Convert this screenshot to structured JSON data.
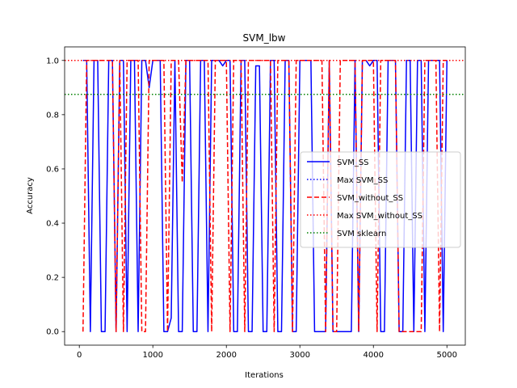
{
  "chart_data": {
    "type": "line",
    "title": "SVM_lbw",
    "xlabel": "Iterations",
    "ylabel": "Accuracy",
    "xlim": [
      -200,
      5250
    ],
    "ylim": [
      -0.05,
      1.05
    ],
    "xticks": [
      0,
      1000,
      2000,
      3000,
      4000,
      5000
    ],
    "yticks": [
      0.0,
      0.2,
      0.4,
      0.6,
      0.8,
      1.0
    ],
    "legend_position": "center-right",
    "grid": false,
    "series": [
      {
        "name": "SVM_SS",
        "color": "#0000ff",
        "style": "solid",
        "x": [
          50,
          100,
          150,
          200,
          250,
          300,
          350,
          400,
          450,
          500,
          550,
          600,
          650,
          700,
          750,
          800,
          850,
          900,
          950,
          1000,
          1050,
          1100,
          1150,
          1200,
          1250,
          1300,
          1350,
          1400,
          1450,
          1500,
          1550,
          1600,
          1650,
          1700,
          1750,
          1800,
          1850,
          1900,
          1950,
          2000,
          2050,
          2100,
          2150,
          2200,
          2250,
          2300,
          2350,
          2400,
          2450,
          2500,
          2550,
          2600,
          2650,
          2700,
          2750,
          2800,
          2850,
          2900,
          2950,
          3000,
          3050,
          3100,
          3150,
          3200,
          3250,
          3300,
          3350,
          3400,
          3450,
          3500,
          3550,
          3600,
          3650,
          3700,
          3750,
          3800,
          3850,
          3900,
          3950,
          4000,
          4050,
          4100,
          4150,
          4200,
          4250,
          4300,
          4350,
          4400,
          4450,
          4500,
          4550,
          4600,
          4650,
          4700,
          4750,
          4800,
          4850,
          4900,
          4950,
          5000
        ],
        "y": [
          1.0,
          1.0,
          0.0,
          1.0,
          1.0,
          0.0,
          0.0,
          1.0,
          1.0,
          0.0,
          1.0,
          1.0,
          0.0,
          1.0,
          1.0,
          0.0,
          1.0,
          1.0,
          0.9,
          1.0,
          1.0,
          1.0,
          0.0,
          0.0,
          0.05,
          1.0,
          0.0,
          0.0,
          1.0,
          1.0,
          0.0,
          0.0,
          1.0,
          1.0,
          0.0,
          1.0,
          1.0,
          1.0,
          0.98,
          1.0,
          1.0,
          0.0,
          0.0,
          1.0,
          1.0,
          0.0,
          0.0,
          0.98,
          0.98,
          0.0,
          0.0,
          1.0,
          1.0,
          0.0,
          0.0,
          1.0,
          1.0,
          0.0,
          0.0,
          1.0,
          1.0,
          1.0,
          1.0,
          0.0,
          0.0,
          0.0,
          0.0,
          1.0,
          0.0,
          0.0,
          0.0,
          0.0,
          0.0,
          0.0,
          1.0,
          0.0,
          1.0,
          1.0,
          0.98,
          1.0,
          1.0,
          0.0,
          0.0,
          1.0,
          1.0,
          1.0,
          0.0,
          0.0,
          1.0,
          1.0,
          0.0,
          1.0,
          1.0,
          0.0,
          1.0,
          1.0,
          1.0,
          1.0,
          0.0,
          1.0
        ]
      },
      {
        "name": "Max SVM_SS",
        "color": "#0000ff",
        "style": "dotted",
        "x": [
          -200,
          5250
        ],
        "y": [
          1.0,
          1.0
        ]
      },
      {
        "name": "SVM_without_SS",
        "color": "#ff0000",
        "style": "dashed",
        "x": [
          50,
          100,
          150,
          200,
          250,
          300,
          350,
          400,
          450,
          500,
          550,
          600,
          650,
          700,
          750,
          800,
          850,
          900,
          950,
          1000,
          1050,
          1100,
          1150,
          1200,
          1250,
          1300,
          1350,
          1400,
          1450,
          1500,
          1550,
          1600,
          1650,
          1700,
          1750,
          1800,
          1850,
          1900,
          1950,
          2000,
          2050,
          2100,
          2150,
          2200,
          2250,
          2300,
          2350,
          2400,
          2450,
          2500,
          2550,
          2600,
          2650,
          2700,
          2750,
          2800,
          2850,
          2900,
          2950,
          3000,
          3050,
          3100,
          3150,
          3200,
          3250,
          3300,
          3350,
          3400,
          3450,
          3500,
          3550,
          3600,
          3650,
          3700,
          3750,
          3800,
          3850,
          3900,
          3950,
          4000,
          4050,
          4100,
          4150,
          4200,
          4250,
          4300,
          4350,
          4400,
          4450,
          4500,
          4550,
          4600,
          4650,
          4700,
          4750,
          4800,
          4850,
          4900,
          4950,
          5000
        ],
        "y": [
          0.0,
          1.0,
          1.0,
          1.0,
          1.0,
          1.0,
          1.0,
          1.0,
          1.0,
          0.0,
          1.0,
          0.0,
          1.0,
          1.0,
          1.0,
          1.0,
          0.0,
          0.0,
          1.0,
          1.0,
          1.0,
          1.0,
          1.0,
          0.0,
          1.0,
          1.0,
          1.0,
          0.55,
          1.0,
          1.0,
          1.0,
          1.0,
          1.0,
          1.0,
          1.0,
          0.0,
          1.0,
          1.0,
          1.0,
          1.0,
          0.0,
          1.0,
          1.0,
          1.0,
          0.0,
          1.0,
          1.0,
          1.0,
          1.0,
          1.0,
          1.0,
          1.0,
          0.0,
          1.0,
          1.0,
          1.0,
          1.0,
          0.0,
          1.0,
          1.0,
          1.0,
          1.0,
          1.0,
          1.0,
          1.0,
          1.0,
          0.0,
          1.0,
          0.0,
          0.0,
          1.0,
          1.0,
          1.0,
          1.0,
          1.0,
          0.0,
          1.0,
          1.0,
          1.0,
          1.0,
          0.0,
          1.0,
          1.0,
          1.0,
          1.0,
          1.0,
          0.0,
          0.0,
          0.0,
          0.0,
          0.0,
          0.0,
          0.0,
          1.0,
          1.0,
          1.0,
          1.0,
          0.0,
          1.0,
          1.0
        ]
      },
      {
        "name": "Max SVM_without_SS",
        "color": "#ff0000",
        "style": "dotted",
        "x": [
          -200,
          5250
        ],
        "y": [
          1.0,
          1.0
        ]
      },
      {
        "name": "SVM sklearn",
        "color": "#008000",
        "style": "dotted",
        "x": [
          -200,
          5250
        ],
        "y": [
          0.875,
          0.875
        ]
      }
    ]
  }
}
